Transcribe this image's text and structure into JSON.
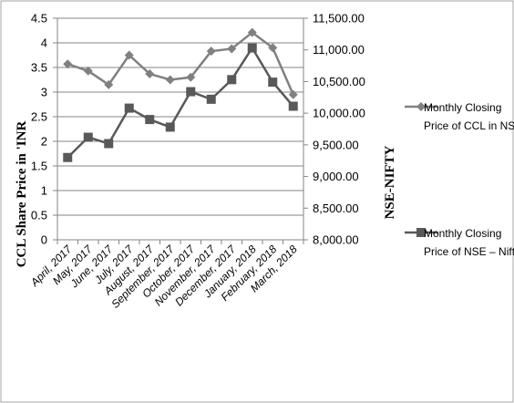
{
  "chart_data": {
    "type": "line",
    "categories": [
      "April, 2017",
      "May, 2017",
      "June, 2017",
      "July, 2017",
      "August, 2017",
      "September, 2017",
      "October, 2017",
      "November, 2017",
      "December, 2017",
      "January, 2018",
      "February, 2018",
      "March, 2018"
    ],
    "ylabel": "CCL Share Price in 'INR",
    "y2label": "NSE-NIFTY",
    "ylim": [
      0,
      4.5
    ],
    "y2lim": [
      8000,
      11500
    ],
    "yticks": [
      "0",
      "0.5",
      "1",
      "1.5",
      "2",
      "2.5",
      "3",
      "3.5",
      "4",
      "4.5"
    ],
    "y2ticks": [
      "8,000.00",
      "8,500.00",
      "9,000.00",
      "9,500.00",
      "10,000.00",
      "10,500.00",
      "11,000.00",
      "11,500.00"
    ],
    "grid": true,
    "legend_position": "right",
    "series": [
      {
        "name_lines": [
          "Monthly Closing",
          "Price of CCL in NSE"
        ],
        "axis": "left",
        "marker": "diamond",
        "color": "#808080",
        "values": [
          3.57,
          3.43,
          3.15,
          3.75,
          3.37,
          3.25,
          3.3,
          3.83,
          3.88,
          4.21,
          3.9,
          2.95
        ]
      },
      {
        "name_lines": [
          "Monthly Closing",
          "Price of NSE – Nifty"
        ],
        "axis": "right",
        "marker": "square",
        "color": "#595959",
        "values": [
          9300,
          9620,
          9520,
          10080,
          9900,
          9780,
          10340,
          10220,
          10530,
          11030,
          10490,
          10110
        ]
      }
    ]
  }
}
